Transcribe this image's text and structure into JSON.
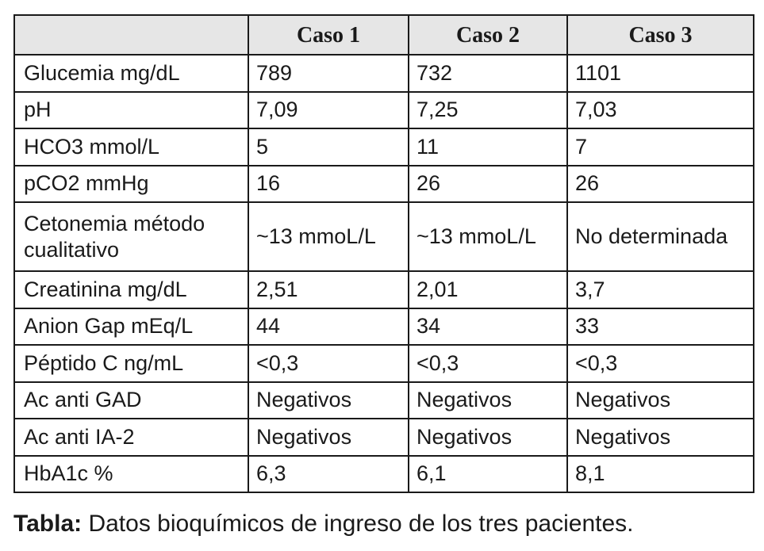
{
  "table": {
    "headers": [
      "",
      "Caso 1",
      "Caso 2",
      "Caso 3"
    ],
    "rows": [
      {
        "label": "Glucemia mg/dL",
        "values": [
          "789",
          "732",
          "1101"
        ]
      },
      {
        "label": "pH",
        "values": [
          "7,09",
          "7,25",
          "7,03"
        ]
      },
      {
        "label": "HCO3 mmol/L",
        "values": [
          "5",
          "11",
          "7"
        ]
      },
      {
        "label": "pCO2 mmHg",
        "values": [
          "16",
          "26",
          "26"
        ]
      },
      {
        "label": "Cetonemia método cualitativo",
        "values": [
          "~13 mmoL/L",
          "~13 mmoL/L",
          "No determinada"
        ]
      },
      {
        "label": "Creatinina mg/dL",
        "values": [
          "2,51",
          "2,01",
          "3,7"
        ]
      },
      {
        "label": "Anion Gap mEq/L",
        "values": [
          "44",
          "34",
          "33"
        ]
      },
      {
        "label": "Péptido C ng/mL",
        "values": [
          "<0,3",
          "<0,3",
          "<0,3"
        ]
      },
      {
        "label": "Ac anti GAD",
        "values": [
          "Negativos",
          "Negativos",
          "Negativos"
        ]
      },
      {
        "label": "Ac anti IA-2",
        "values": [
          "Negativos",
          "Negativos",
          "Negativos"
        ]
      },
      {
        "label": "HbA1c %",
        "values": [
          "6,3",
          "6,1",
          "8,1"
        ]
      }
    ]
  },
  "caption": {
    "label": "Tabla:",
    "text": " Datos bioquímicos de ingreso de los tres pacientes."
  },
  "colors": {
    "header_background": "#e6e6e6",
    "border": "#1a1a1a",
    "text": "#1a1a1a"
  }
}
